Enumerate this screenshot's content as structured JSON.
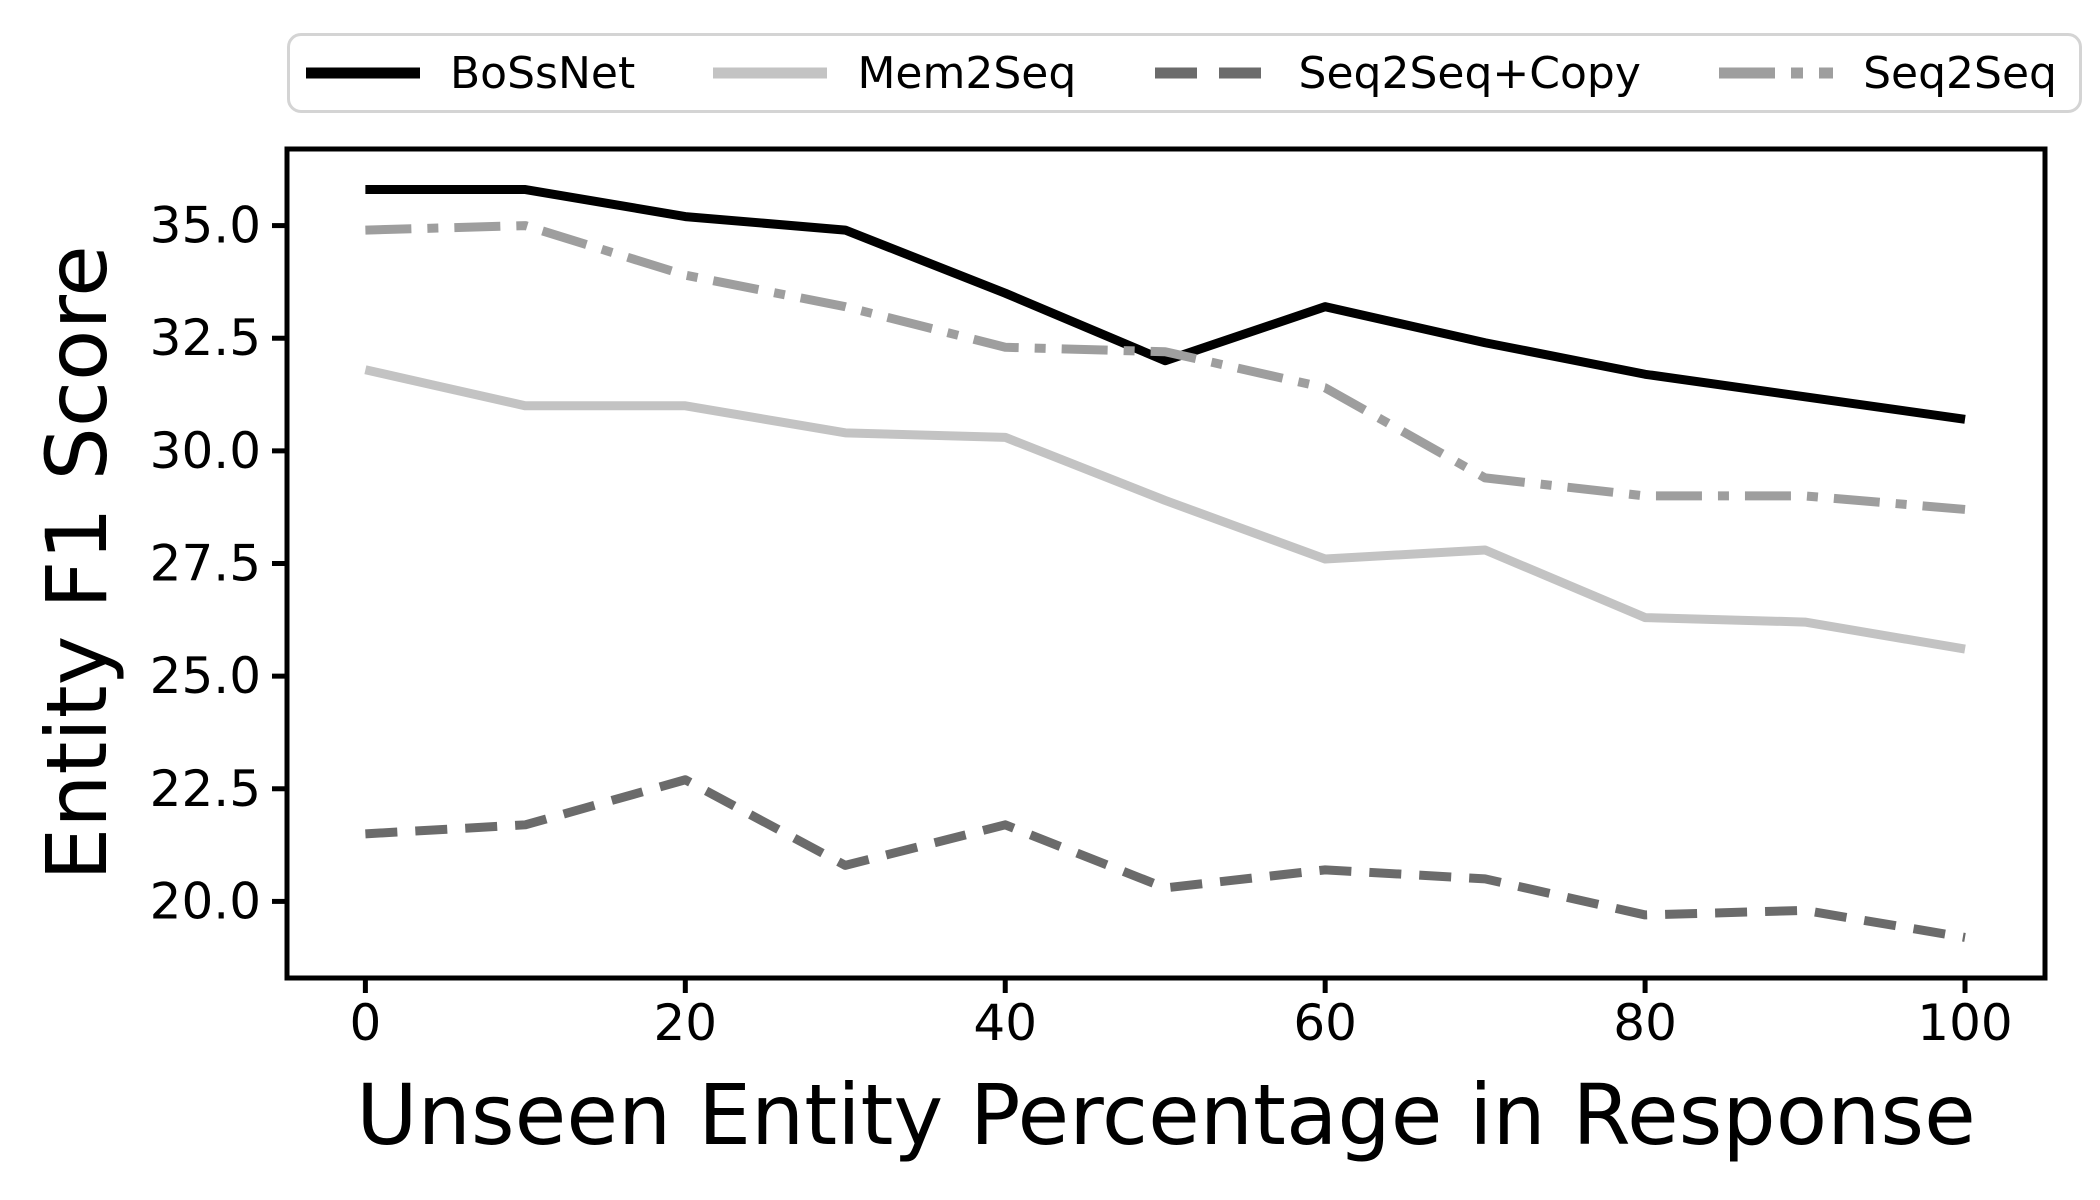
{
  "chart_data": {
    "type": "line",
    "title": "",
    "xlabel": "Unseen Entity Percentage in Response",
    "ylabel": "Entity F1 Score",
    "grid": false,
    "legend_position": "top",
    "xlim": [
      -4.9,
      105.0
    ],
    "ylim": [
      18.3,
      36.7
    ],
    "x_ticks": [
      "0",
      "20",
      "40",
      "60",
      "80",
      "100"
    ],
    "x_tick_values": [
      0,
      20,
      40,
      60,
      80,
      100
    ],
    "y_ticks": [
      "35.0",
      "32.5",
      "30.0",
      "27.5",
      "25.0",
      "22.5",
      "20.0"
    ],
    "y_tick_values": [
      35.0,
      32.5,
      30.0,
      27.5,
      25.0,
      22.5,
      20.0
    ],
    "x": [
      0,
      10,
      20,
      30,
      40,
      50,
      60,
      70,
      80,
      90,
      100
    ],
    "series": [
      {
        "name": "BoSsNet",
        "color": "#000000",
        "style": "solid",
        "values": [
          35.8,
          35.8,
          35.2,
          34.9,
          33.5,
          32.0,
          33.2,
          32.4,
          31.7,
          31.2,
          30.7
        ]
      },
      {
        "name": "Mem2Seq",
        "color": "#c3c3c3",
        "style": "solid",
        "values": [
          31.8,
          31.0,
          31.0,
          30.4,
          30.3,
          28.9,
          27.6,
          27.8,
          26.3,
          26.2,
          25.6
        ]
      },
      {
        "name": "Seq2Seq+Copy",
        "color": "#6b6b6b",
        "style": "dashed",
        "values": [
          21.5,
          21.7,
          22.7,
          20.8,
          21.7,
          20.3,
          20.7,
          20.5,
          19.7,
          19.8,
          19.2
        ]
      },
      {
        "name": "Seq2Seq",
        "color": "#9e9e9e",
        "style": "dashdot",
        "values": [
          34.9,
          35.0,
          33.9,
          33.2,
          32.3,
          32.2,
          31.4,
          29.4,
          29.0,
          29.0,
          28.7
        ]
      }
    ]
  }
}
